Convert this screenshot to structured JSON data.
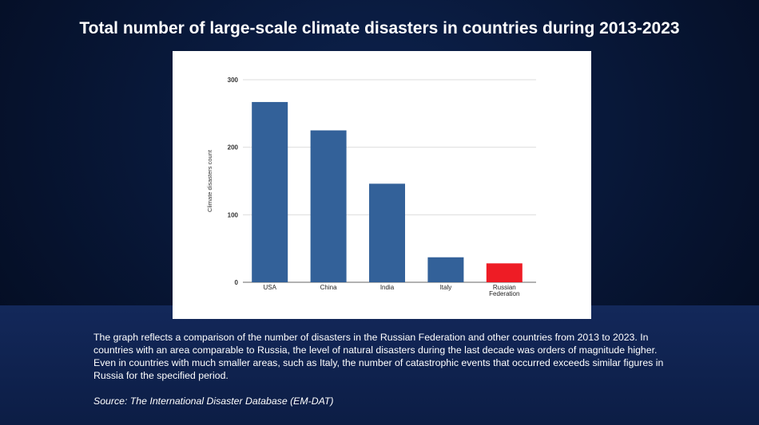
{
  "chart_data": {
    "type": "bar",
    "title": "Total number of large-scale climate disasters in countries during 2013-2023",
    "xlabel": "",
    "ylabel": "Climate disasters count",
    "ylim": [
      0,
      300
    ],
    "yticks": [
      "0",
      "100",
      "200",
      "300"
    ],
    "categories": [
      "USA",
      "China",
      "India",
      "Italy",
      "Russian Federation"
    ],
    "category_lines": [
      [
        "USA"
      ],
      [
        "China"
      ],
      [
        "India"
      ],
      [
        "Italy"
      ],
      [
        "Russian",
        "Federation"
      ]
    ],
    "values": [
      267,
      225,
      146,
      37,
      28
    ],
    "colors": [
      "#336199",
      "#336199",
      "#336199",
      "#336199",
      "#ee1c25"
    ],
    "grid": true
  },
  "description": "The graph reflects a comparison of the number of disasters in the Russian Federation and other countries from 2013 to 2023. In countries with an area comparable to Russia, the level of natural disasters during the last decade was orders of magnitude higher. Even in countries with much smaller areas, such as Italy, the number of catastrophic events that occurred exceeds similar figures in Russia for the specified period.",
  "source": "Source: The International Disaster Database (EM-DAT)"
}
